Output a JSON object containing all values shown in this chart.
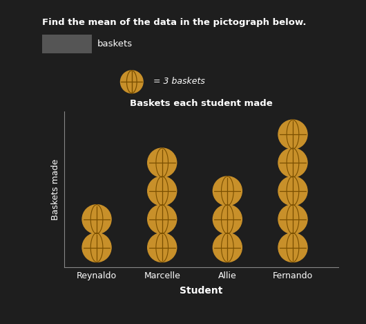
{
  "title": "Baskets each student made",
  "xlabel": "Student",
  "ylabel": "Baskets made",
  "students": [
    "Reynaldo",
    "Marcelle",
    "Allie",
    "Fernando"
  ],
  "ball_counts": [
    2,
    4,
    3,
    5
  ],
  "ball_color": "#C8902A",
  "ball_line_color": "#7A4F00",
  "background_color": "#1e1e1e",
  "text_color": "#ffffff",
  "legend_text": "= 3 baskets",
  "question_text": "Find the mean of the data in the pictograph below.",
  "answer_label": "baskets",
  "title_color": "#ffffff",
  "axis_label_color": "#ffffff",
  "tick_label_color": "#ffffff",
  "x_positions": [
    1,
    2,
    3,
    4
  ],
  "answer_box_color": "#555555"
}
